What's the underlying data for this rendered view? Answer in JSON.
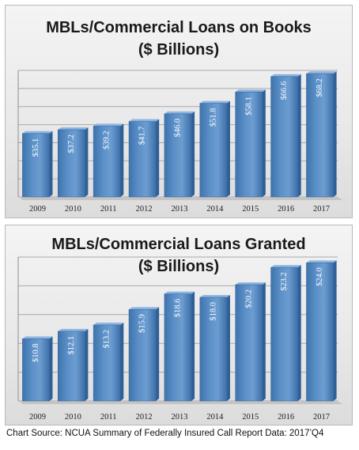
{
  "chart_data": [
    {
      "type": "bar",
      "title": "MBLs/Commercial Loans on Books",
      "subtitle": "($ Billions)",
      "categories": [
        "2009",
        "2010",
        "2011",
        "2012",
        "2013",
        "2014",
        "2015",
        "2016",
        "2017"
      ],
      "values": [
        35.1,
        37.2,
        39.2,
        41.7,
        46.0,
        51.8,
        58.1,
        66.6,
        68.2
      ],
      "value_labels": [
        "$35.1",
        "$37.2",
        "$39.2",
        "$41.7",
        "$46.0",
        "$51.8",
        "$58.1",
        "$66.6",
        "$68.2"
      ],
      "ylim": [
        0,
        70
      ],
      "grid": true,
      "bar_color": "#5b8fc7"
    },
    {
      "type": "bar",
      "title": "MBLs/Commercial Loans Granted",
      "subtitle": "($ Billions)",
      "categories": [
        "2009",
        "2010",
        "2011",
        "2012",
        "2013",
        "2014",
        "2015",
        "2016",
        "2017"
      ],
      "values": [
        10.8,
        12.1,
        13.2,
        15.9,
        18.6,
        18.0,
        20.2,
        23.2,
        24.0
      ],
      "value_labels": [
        "$10.8",
        "$12.1",
        "$13.2",
        "$15.9",
        "$18.6",
        "$18.0",
        "$20.2",
        "$23.2",
        "$24.0"
      ],
      "ylim": [
        0,
        25
      ],
      "grid": true,
      "bar_color": "#5b8fc7"
    }
  ],
  "source": "Chart Source: NCUA Summary of Federally Insured Call Report Data: 2017’Q4"
}
